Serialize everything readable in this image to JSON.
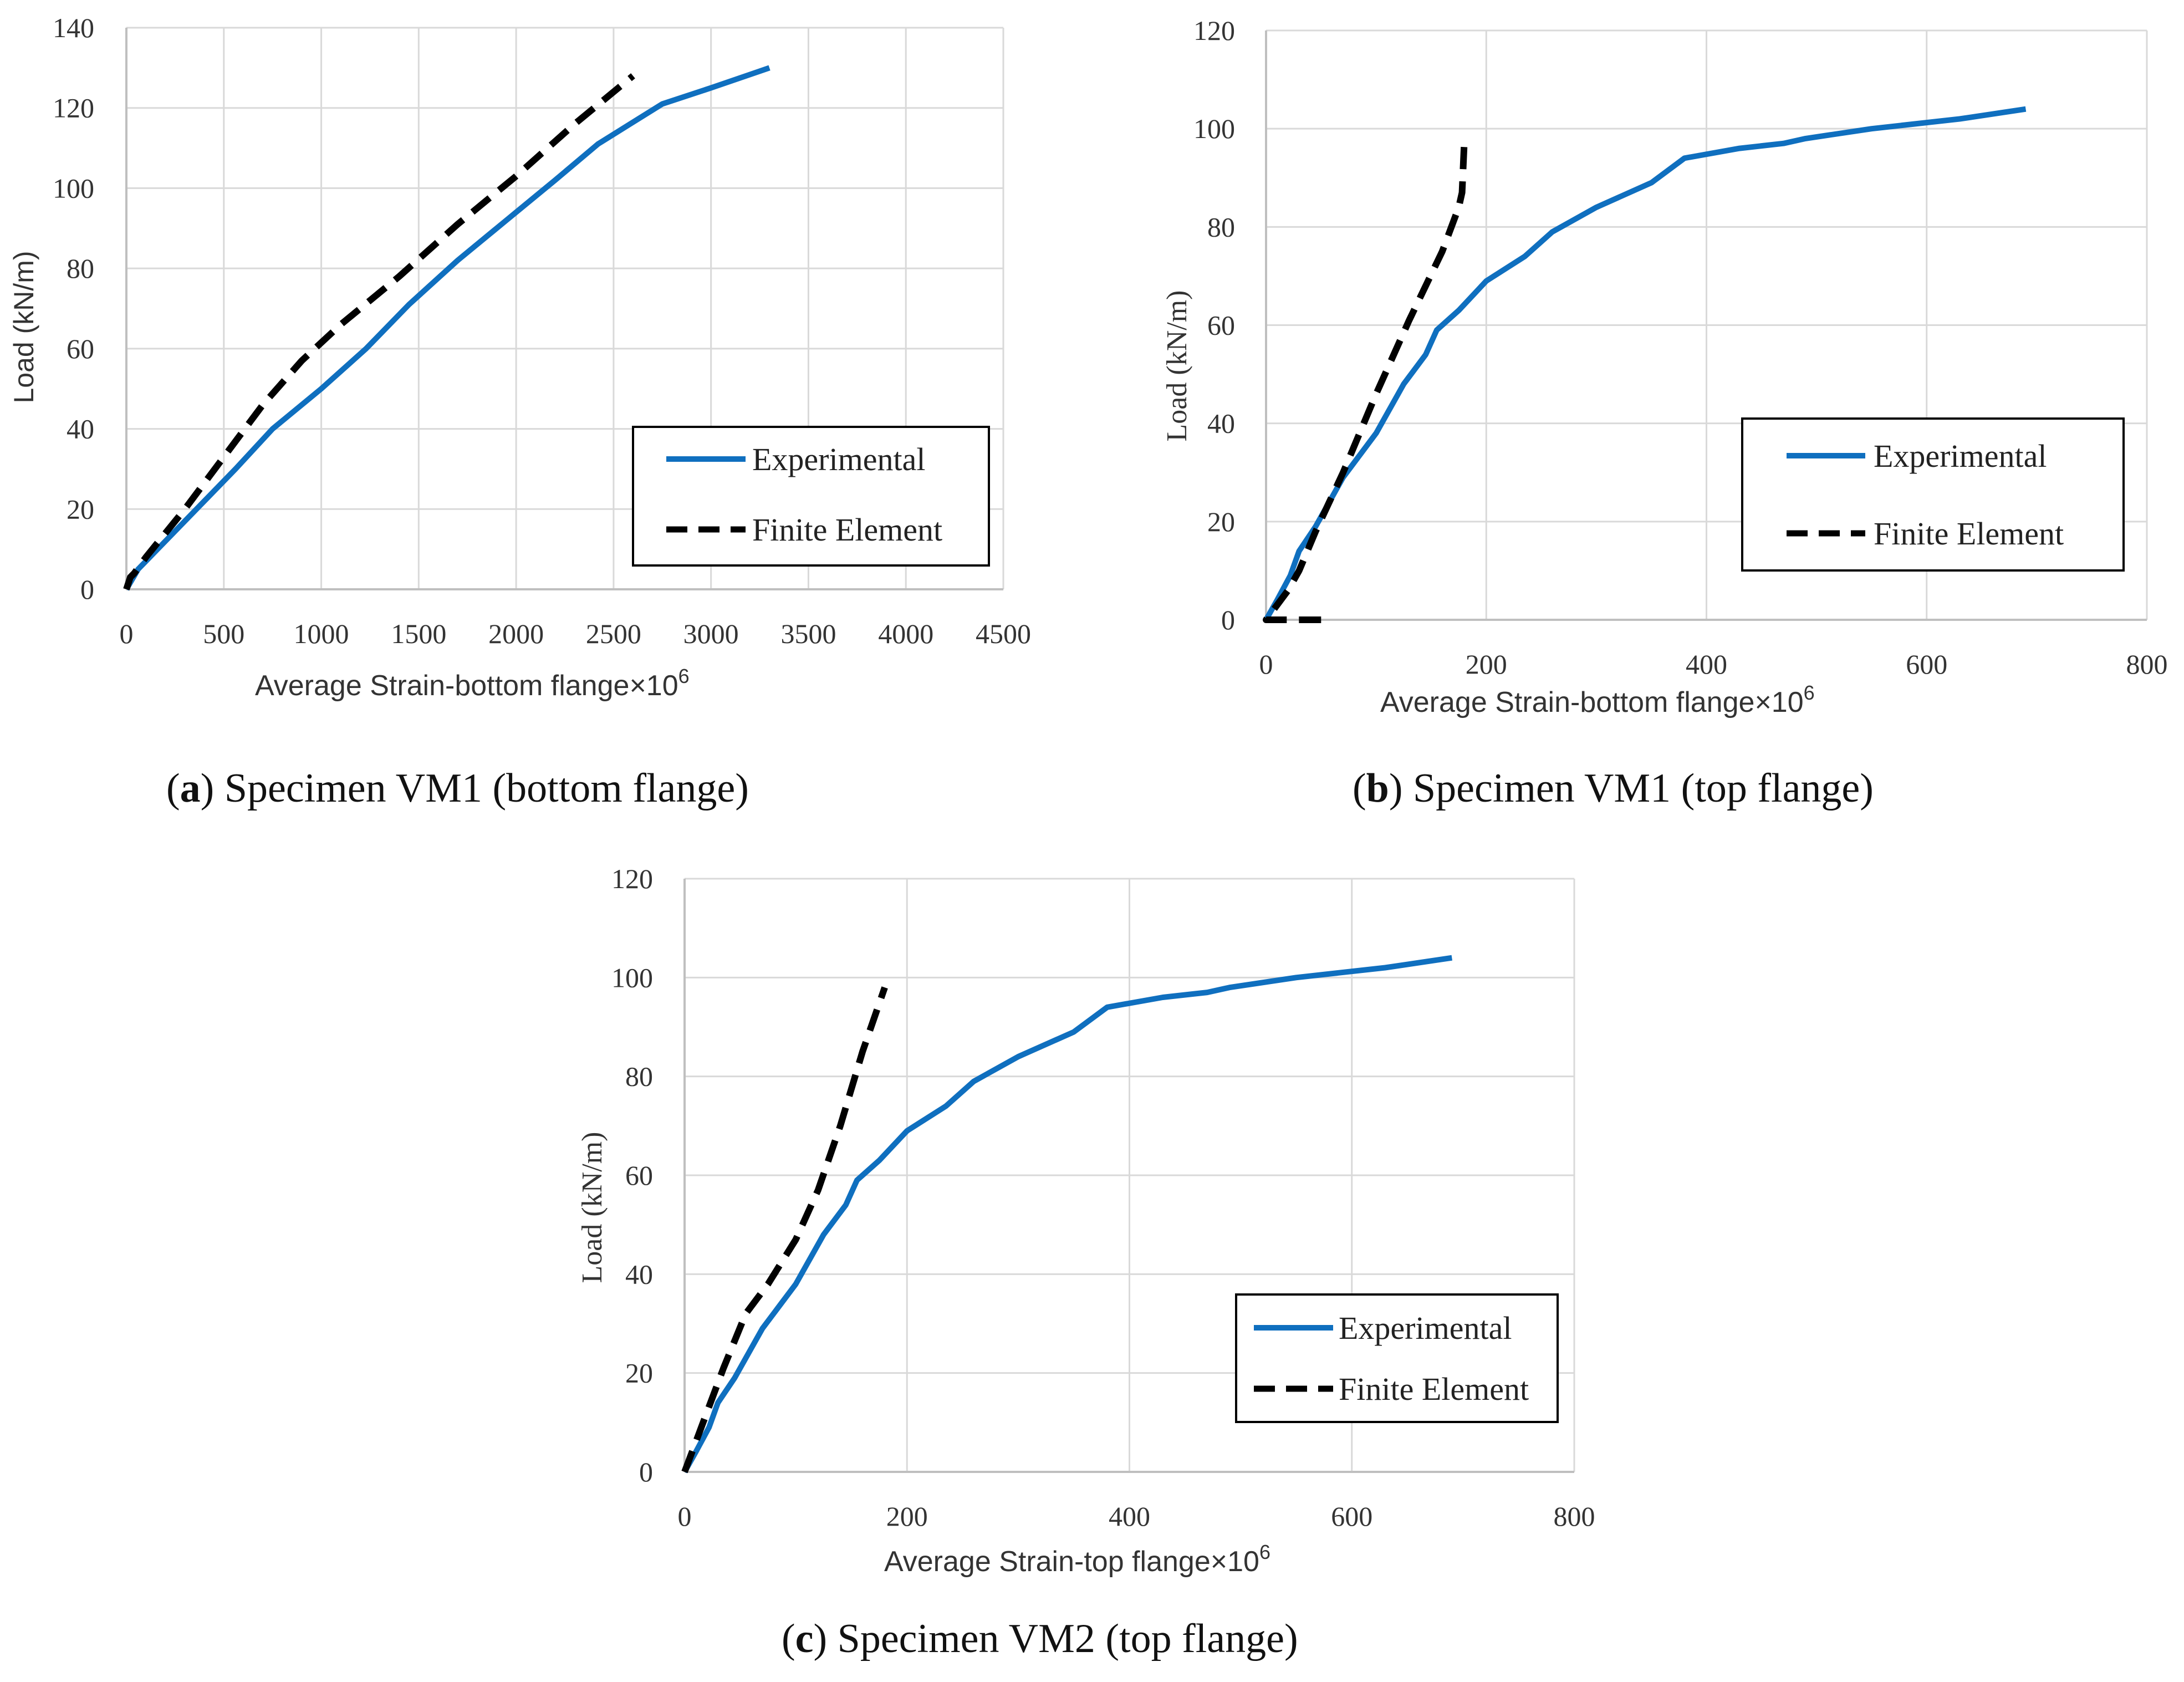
{
  "colors": {
    "experimental": "#0f6fbf",
    "finite_element": "#000000",
    "grid": "#d9d9d9",
    "axis": "#bfbfbf"
  },
  "chart_data": [
    {
      "id": "a",
      "type": "line",
      "caption": {
        "letter": "a",
        "open": "(",
        "close": ")",
        "text": " Specimen VM1 (bottom flange)"
      },
      "xlabel": "Average Strain-bottom flange×10",
      "xlabel_sup": "6",
      "ylabel": "Load (kN/m)",
      "xlim": [
        0,
        4500
      ],
      "ylim": [
        0,
        140
      ],
      "xticks": [
        0,
        500,
        1000,
        1500,
        2000,
        2500,
        3000,
        3500,
        4000,
        4500
      ],
      "yticks": [
        0,
        20,
        40,
        60,
        80,
        100,
        120,
        140
      ],
      "legend": {
        "position": "bottom-right",
        "entries": [
          "Experimental",
          "Finite Element"
        ]
      },
      "series": [
        {
          "name": "Experimental",
          "style": "solid",
          "x": [
            0,
            60,
            200,
            380,
            560,
            750,
            1000,
            1230,
            1450,
            1700,
            1950,
            2200,
            2420,
            2750,
            3000,
            3300
          ],
          "y": [
            0,
            5,
            12,
            21,
            30,
            40,
            50,
            60,
            71,
            82,
            92,
            102,
            111,
            121,
            125,
            130
          ]
        },
        {
          "name": "Finite Element",
          "style": "dashed",
          "x": [
            0,
            20,
            40,
            100,
            300,
            500,
            700,
            900,
            1100,
            1400,
            1700,
            2000,
            2300,
            2450,
            2600
          ],
          "y": [
            0,
            3,
            4,
            8,
            20,
            33,
            46,
            57,
            66,
            78,
            91,
            103,
            116,
            122,
            128
          ]
        }
      ]
    },
    {
      "id": "b",
      "type": "line",
      "caption": {
        "letter": "b",
        "open": "(",
        "close": ")",
        "text": " Specimen VM1 (top flange)"
      },
      "xlabel": "Average Strain-bottom flange×10",
      "xlabel_sup": "6",
      "ylabel": "Load (kN/m)",
      "xlim": [
        0,
        800
      ],
      "ylim": [
        0,
        120
      ],
      "xticks": [
        0,
        200,
        400,
        600,
        800
      ],
      "yticks": [
        0,
        20,
        40,
        60,
        80,
        100,
        120
      ],
      "legend": {
        "position": "bottom-right",
        "entries": [
          "Experimental",
          "Finite Element"
        ]
      },
      "series": [
        {
          "name": "Experimental",
          "style": "solid",
          "x": [
            0,
            10,
            22,
            30,
            45,
            55,
            70,
            100,
            125,
            145,
            155,
            175,
            200,
            235,
            260,
            300,
            350,
            380,
            430,
            470,
            490,
            550,
            630,
            690
          ],
          "y": [
            0,
            4,
            9,
            14,
            19,
            23,
            29,
            38,
            48,
            54,
            59,
            63,
            69,
            74,
            79,
            84,
            89,
            94,
            96,
            97,
            98,
            100,
            102,
            104
          ]
        },
        {
          "name": "Finite Element",
          "style": "dashed",
          "x": [
            50,
            40,
            20,
            10,
            0,
            10,
            20,
            30,
            45,
            70,
            100,
            130,
            160,
            175,
            178,
            180
          ],
          "y": [
            0,
            0,
            0,
            0,
            0,
            3,
            6,
            10,
            18,
            30,
            46,
            61,
            75,
            84,
            87,
            97
          ]
        }
      ]
    },
    {
      "id": "c",
      "type": "line",
      "caption": {
        "letter": "c",
        "open": "(",
        "close": ")",
        "text": " Specimen VM2 (top flange)"
      },
      "xlabel": "Average Strain-top flange×10",
      "xlabel_sup": "6",
      "ylabel": "Load (kN/m)",
      "xlim": [
        0,
        800
      ],
      "ylim": [
        0,
        120
      ],
      "xticks": [
        0,
        200,
        400,
        600,
        800
      ],
      "yticks": [
        0,
        20,
        40,
        60,
        80,
        100,
        120
      ],
      "legend": {
        "position": "bottom-right",
        "entries": [
          "Experimental",
          "Finite Element"
        ]
      },
      "series": [
        {
          "name": "Experimental",
          "style": "solid",
          "x": [
            0,
            10,
            22,
            30,
            45,
            55,
            70,
            100,
            125,
            145,
            155,
            175,
            200,
            235,
            260,
            300,
            350,
            380,
            430,
            470,
            490,
            550,
            630,
            690
          ],
          "y": [
            0,
            4,
            9,
            14,
            19,
            23,
            29,
            38,
            48,
            54,
            59,
            63,
            69,
            74,
            79,
            84,
            89,
            94,
            96,
            97,
            98,
            100,
            102,
            104
          ]
        },
        {
          "name": "Finite Element",
          "style": "dashed",
          "x": [
            0,
            10,
            20,
            35,
            55,
            75,
            100,
            120,
            140,
            160,
            180
          ],
          "y": [
            0,
            6,
            12,
            21,
            32,
            38,
            47,
            57,
            70,
            85,
            98
          ]
        }
      ]
    }
  ]
}
